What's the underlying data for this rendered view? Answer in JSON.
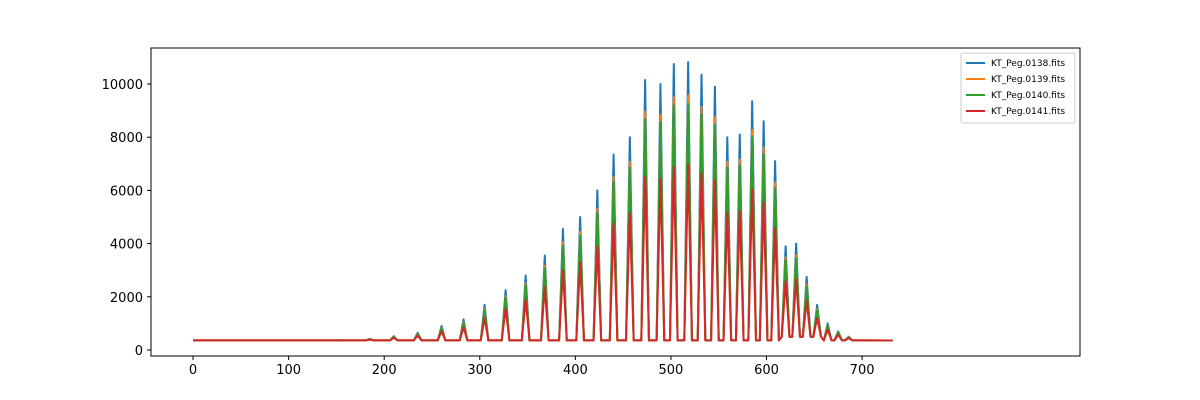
{
  "chart_data": {
    "type": "line",
    "x": [
      0,
      151,
      155,
      159,
      181,
      185,
      189,
      206,
      210,
      214,
      231,
      235,
      239,
      256,
      260,
      264,
      279,
      283,
      287,
      301,
      305,
      309,
      323,
      327,
      331,
      344,
      348,
      352,
      364,
      368,
      372,
      383,
      387,
      391,
      401,
      405,
      409,
      419,
      423,
      427,
      436,
      440,
      444,
      453,
      457,
      461,
      469,
      473,
      477,
      485,
      489,
      493,
      499,
      503,
      507,
      514,
      518,
      522,
      528,
      532,
      536,
      542,
      546,
      550,
      555,
      559,
      563,
      568,
      572,
      576,
      581,
      585,
      589,
      593,
      597,
      601,
      605,
      609,
      613,
      616,
      620,
      624,
      627,
      631,
      635,
      638,
      642,
      646,
      649,
      653,
      657,
      660,
      664,
      668,
      671,
      675,
      679,
      682,
      686,
      690,
      700,
      732
    ],
    "series": [
      {
        "name": "KT_Peg.0138.fits",
        "color": "#1f77b4",
        "values": [
          360,
          360,
          370,
          360,
          360,
          420,
          360,
          360,
          520,
          360,
          360,
          650,
          360,
          360,
          900,
          360,
          360,
          1150,
          360,
          360,
          1700,
          360,
          360,
          2250,
          360,
          360,
          2800,
          360,
          360,
          3550,
          360,
          360,
          4550,
          360,
          360,
          5000,
          360,
          360,
          6000,
          360,
          360,
          7350,
          360,
          360,
          8000,
          360,
          360,
          10150,
          360,
          360,
          10000,
          360,
          360,
          10750,
          360,
          360,
          10820,
          360,
          360,
          10350,
          360,
          360,
          9900,
          360,
          360,
          8000,
          360,
          360,
          8100,
          360,
          360,
          9350,
          360,
          360,
          8600,
          360,
          360,
          7100,
          360,
          500,
          3900,
          500,
          500,
          4000,
          500,
          500,
          2750,
          500,
          500,
          1700,
          500,
          360,
          1000,
          360,
          360,
          700,
          360,
          360,
          500,
          360,
          360,
          355
        ]
      },
      {
        "name": "KT_Peg.0139.fits",
        "color": "#ff7f0e",
        "values": [
          360,
          360,
          368,
          360,
          360,
          412,
          360,
          360,
          500,
          360,
          360,
          615,
          360,
          360,
          835,
          360,
          360,
          1055,
          360,
          360,
          1540,
          360,
          360,
          2020,
          360,
          360,
          2505,
          360,
          360,
          3165,
          360,
          360,
          4045,
          360,
          360,
          4440,
          360,
          360,
          5320,
          360,
          360,
          6510,
          360,
          360,
          7080,
          360,
          360,
          8975,
          360,
          360,
          8840,
          360,
          360,
          9500,
          360,
          360,
          9565,
          360,
          360,
          9150,
          360,
          360,
          8755,
          360,
          360,
          7080,
          360,
          360,
          7170,
          360,
          360,
          8270,
          360,
          360,
          7610,
          360,
          360,
          6290,
          360,
          500,
          3475,
          500,
          500,
          3560,
          500,
          500,
          2460,
          500,
          500,
          1540,
          500,
          360,
          920,
          360,
          360,
          660,
          360,
          360,
          480,
          360,
          360,
          355
        ]
      },
      {
        "name": "KT_Peg.0140.fits",
        "color": "#2ca02c",
        "values": [
          360,
          360,
          367,
          360,
          360,
          410,
          360,
          360,
          495,
          360,
          360,
          605,
          360,
          360,
          820,
          360,
          360,
          1030,
          360,
          360,
          1500,
          360,
          360,
          1965,
          360,
          360,
          2435,
          360,
          360,
          3070,
          360,
          360,
          3920,
          360,
          360,
          4300,
          360,
          360,
          5150,
          360,
          360,
          6300,
          360,
          360,
          6850,
          360,
          360,
          8680,
          360,
          360,
          8550,
          360,
          360,
          9190,
          360,
          360,
          9250,
          360,
          360,
          8850,
          360,
          360,
          8470,
          360,
          360,
          6850,
          360,
          360,
          6940,
          360,
          360,
          8000,
          360,
          360,
          7360,
          360,
          360,
          6090,
          360,
          500,
          3370,
          500,
          500,
          3450,
          500,
          500,
          2390,
          500,
          500,
          1500,
          500,
          360,
          900,
          360,
          360,
          650,
          360,
          360,
          475,
          360,
          360,
          355
        ]
      },
      {
        "name": "KT_Peg.0141.fits",
        "color": "#d62728",
        "values": [
          360,
          360,
          362,
          360,
          360,
          395,
          360,
          360,
          460,
          360,
          360,
          540,
          360,
          360,
          700,
          360,
          360,
          855,
          360,
          360,
          1200,
          360,
          360,
          1550,
          360,
          360,
          1895,
          360,
          360,
          2365,
          360,
          360,
          2995,
          360,
          360,
          3280,
          360,
          360,
          3910,
          360,
          360,
          4760,
          360,
          360,
          5170,
          360,
          360,
          6525,
          360,
          360,
          6430,
          360,
          360,
          6900,
          360,
          360,
          6945,
          360,
          360,
          6650,
          360,
          360,
          6370,
          360,
          360,
          5170,
          360,
          360,
          5235,
          360,
          360,
          6020,
          360,
          360,
          5550,
          360,
          360,
          4600,
          360,
          500,
          2590,
          500,
          500,
          2650,
          500,
          500,
          1860,
          500,
          500,
          1200,
          500,
          360,
          760,
          360,
          360,
          570,
          360,
          360,
          445,
          360,
          360,
          355
        ]
      }
    ],
    "xlim": [
      -44,
      928
    ],
    "ylim": [
      -226,
      11353
    ],
    "xticks": [
      0,
      100,
      200,
      300,
      400,
      500,
      600,
      700
    ],
    "yticks": [
      0,
      2000,
      4000,
      6000,
      8000,
      10000
    ],
    "legend": "upper right"
  }
}
